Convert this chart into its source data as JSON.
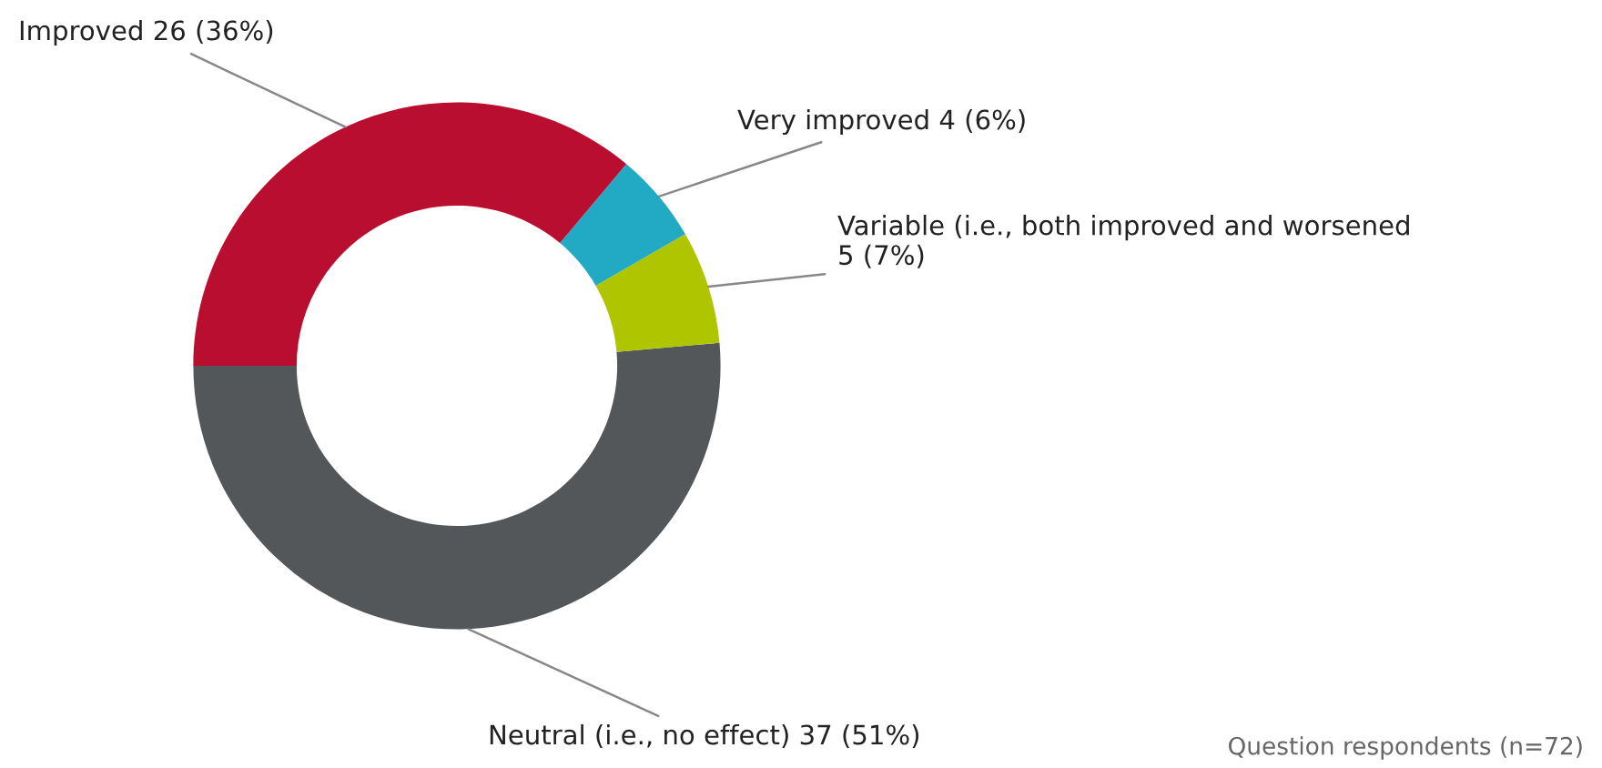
{
  "chart_data": {
    "type": "donut",
    "categories": [
      "Neutral (i.e., no effect)",
      "Variable (i.e., both improved and worsened",
      "Very improved",
      "Improved"
    ],
    "values": [
      37,
      5,
      4,
      26
    ],
    "value_labels": [
      "37 (51%)",
      "5 (7%)",
      "4 (6%)",
      "26 (36%)"
    ],
    "colors": [
      "#545759",
      "#afc500",
      "#22a9c4",
      "#b90e2f"
    ],
    "legend": false,
    "annotations": [
      "Question respondents (n=72)"
    ]
  }
}
